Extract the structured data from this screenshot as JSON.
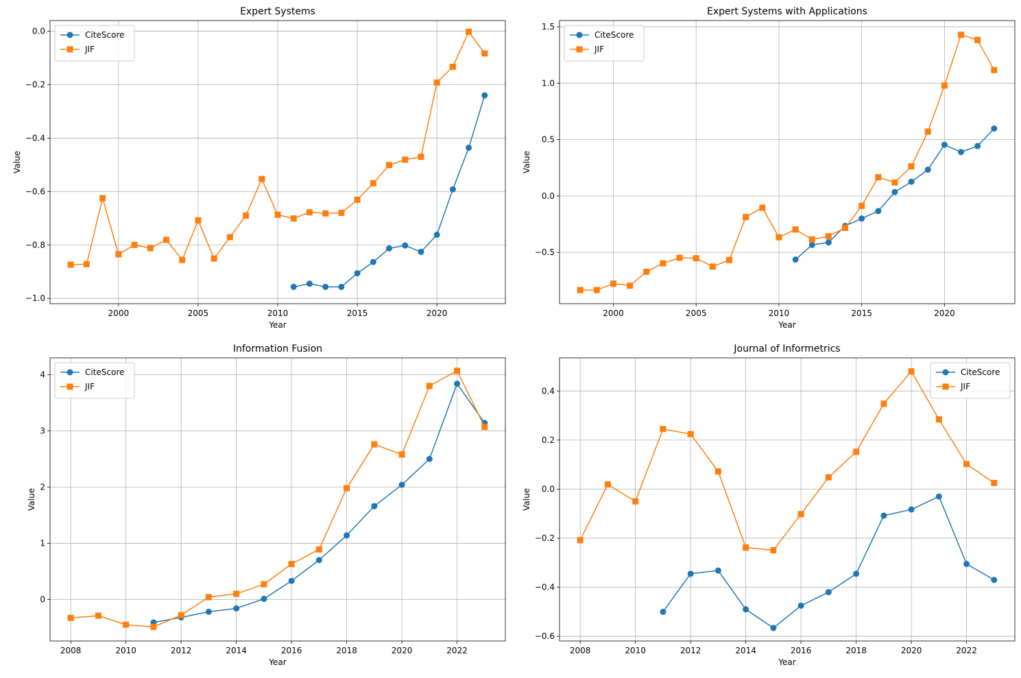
{
  "chart_data": [
    {
      "type": "line",
      "title": "Expert Systems",
      "xlabel": "Year",
      "ylabel": "Value",
      "xlim": [
        1995.7,
        2024.3
      ],
      "ylim": [
        -1.02,
        0.04
      ],
      "xticks": [
        2000,
        2005,
        2010,
        2015,
        2020
      ],
      "yticks": [
        -1.0,
        -0.8,
        -0.6,
        -0.4,
        -0.2,
        0.0
      ],
      "ytick_labels": [
        "−1.0",
        "−0.8",
        "−0.6",
        "−0.4",
        "−0.2",
        "0.0"
      ],
      "grid": true,
      "legend": "upper left",
      "series": [
        {
          "name": "CiteScore",
          "color": "#1f77b4",
          "marker": "circle",
          "x": [
            2011,
            2012,
            2013,
            2014,
            2015,
            2016,
            2017,
            2018,
            2019,
            2020,
            2021,
            2022,
            2023
          ],
          "values": [
            -0.957,
            -0.945,
            -0.957,
            -0.957,
            -0.906,
            -0.864,
            -0.813,
            -0.802,
            -0.826,
            -0.762,
            -0.592,
            -0.436,
            -0.24
          ]
        },
        {
          "name": "JIF",
          "color": "#ff7f0e",
          "marker": "square",
          "x": [
            1997,
            1998,
            1999,
            2000,
            2001,
            2002,
            2003,
            2004,
            2005,
            2006,
            2007,
            2008,
            2009,
            2010,
            2011,
            2012,
            2013,
            2014,
            2015,
            2016,
            2017,
            2018,
            2019,
            2020,
            2021,
            2022,
            2023
          ],
          "values": [
            -0.874,
            -0.872,
            -0.625,
            -0.835,
            -0.8,
            -0.812,
            -0.781,
            -0.856,
            -0.708,
            -0.851,
            -0.771,
            -0.69,
            -0.553,
            -0.687,
            -0.701,
            -0.678,
            -0.682,
            -0.68,
            -0.631,
            -0.569,
            -0.501,
            -0.481,
            -0.47,
            -0.192,
            -0.133,
            -0.002,
            -0.083
          ]
        }
      ]
    },
    {
      "type": "line",
      "title": "Expert Systems with Applications",
      "xlabel": "Year",
      "ylabel": "Value",
      "xlim": [
        1996.75,
        2024.25
      ],
      "ylim": [
        -0.955,
        1.555
      ],
      "xticks": [
        2000,
        2005,
        2010,
        2015,
        2020
      ],
      "yticks": [
        -0.5,
        0.0,
        0.5,
        1.0,
        1.5
      ],
      "ytick_labels": [
        "−0.5",
        "0.0",
        "0.5",
        "1.0",
        "1.5"
      ],
      "grid": true,
      "legend": "upper left",
      "series": [
        {
          "name": "CiteScore",
          "color": "#1f77b4",
          "marker": "circle",
          "x": [
            2011,
            2012,
            2013,
            2014,
            2015,
            2016,
            2017,
            2018,
            2019,
            2020,
            2021,
            2022,
            2023
          ],
          "values": [
            -0.564,
            -0.434,
            -0.412,
            -0.265,
            -0.2,
            -0.134,
            0.035,
            0.126,
            0.233,
            0.454,
            0.389,
            0.443,
            0.598
          ]
        },
        {
          "name": "JIF",
          "color": "#ff7f0e",
          "marker": "square",
          "x": [
            1998,
            1999,
            2000,
            2001,
            2002,
            2003,
            2004,
            2005,
            2006,
            2007,
            2008,
            2009,
            2010,
            2011,
            2012,
            2013,
            2014,
            2015,
            2016,
            2017,
            2018,
            2019,
            2020,
            2021,
            2022,
            2023
          ],
          "values": [
            -0.834,
            -0.834,
            -0.777,
            -0.795,
            -0.672,
            -0.597,
            -0.548,
            -0.552,
            -0.626,
            -0.568,
            -0.187,
            -0.104,
            -0.366,
            -0.297,
            -0.385,
            -0.357,
            -0.283,
            -0.088,
            0.166,
            0.12,
            0.263,
            0.571,
            0.979,
            1.429,
            1.383,
            1.116
          ]
        }
      ]
    },
    {
      "type": "line",
      "title": "Information Fusion",
      "xlabel": "Year",
      "ylabel": "Value",
      "xlim": [
        2007.25,
        2023.75
      ],
      "ylim": [
        -0.74,
        4.3
      ],
      "xticks": [
        2008,
        2010,
        2012,
        2014,
        2016,
        2018,
        2020,
        2022
      ],
      "yticks": [
        0,
        1,
        2,
        3,
        4
      ],
      "ytick_labels": [
        "0",
        "1",
        "2",
        "3",
        "4"
      ],
      "grid": true,
      "legend": "upper left",
      "series": [
        {
          "name": "CiteScore",
          "color": "#1f77b4",
          "marker": "circle",
          "x": [
            2011,
            2012,
            2013,
            2014,
            2015,
            2016,
            2017,
            2018,
            2019,
            2020,
            2021,
            2022,
            2023
          ],
          "values": [
            -0.41,
            -0.32,
            -0.22,
            -0.16,
            0.01,
            0.33,
            0.7,
            1.14,
            1.66,
            2.04,
            2.5,
            3.84,
            3.14
          ]
        },
        {
          "name": "JIF",
          "color": "#ff7f0e",
          "marker": "square",
          "x": [
            2008,
            2009,
            2010,
            2011,
            2012,
            2013,
            2014,
            2015,
            2016,
            2017,
            2018,
            2019,
            2020,
            2021,
            2022,
            2023
          ],
          "values": [
            -0.33,
            -0.29,
            -0.45,
            -0.49,
            -0.28,
            0.04,
            0.1,
            0.27,
            0.63,
            0.89,
            1.98,
            2.76,
            2.58,
            3.8,
            4.07,
            3.07
          ]
        }
      ]
    },
    {
      "type": "line",
      "title": "Journal of Informetrics",
      "xlabel": "Year",
      "ylabel": "Value",
      "xlim": [
        2007.25,
        2023.75
      ],
      "ylim": [
        -0.619,
        0.535
      ],
      "xticks": [
        2008,
        2010,
        2012,
        2014,
        2016,
        2018,
        2020,
        2022
      ],
      "yticks": [
        -0.6,
        -0.4,
        -0.2,
        0.0,
        0.2,
        0.4
      ],
      "ytick_labels": [
        "−0.6",
        "−0.4",
        "−0.2",
        "0.0",
        "0.2",
        "0.4"
      ],
      "grid": true,
      "legend": "upper right",
      "series": [
        {
          "name": "CiteScore",
          "color": "#1f77b4",
          "marker": "circle",
          "x": [
            2011,
            2012,
            2013,
            2014,
            2015,
            2016,
            2017,
            2018,
            2019,
            2020,
            2021,
            2022,
            2023
          ],
          "values": [
            -0.5,
            -0.345,
            -0.332,
            -0.49,
            -0.566,
            -0.475,
            -0.42,
            -0.345,
            -0.108,
            -0.083,
            -0.03,
            -0.305,
            -0.37
          ]
        },
        {
          "name": "JIF",
          "color": "#ff7f0e",
          "marker": "square",
          "x": [
            2008,
            2009,
            2010,
            2011,
            2012,
            2013,
            2014,
            2015,
            2016,
            2017,
            2018,
            2019,
            2020,
            2021,
            2022,
            2023
          ],
          "values": [
            -0.208,
            0.019,
            -0.05,
            0.245,
            0.224,
            0.072,
            -0.238,
            -0.249,
            -0.102,
            0.048,
            0.152,
            0.348,
            0.48,
            0.284,
            0.102,
            0.025
          ]
        }
      ]
    }
  ]
}
